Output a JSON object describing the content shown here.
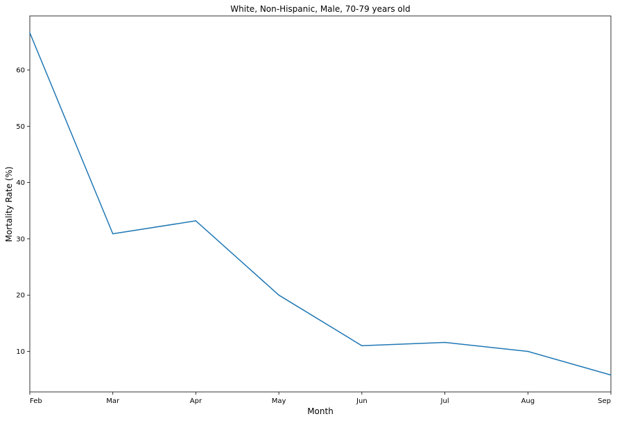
{
  "chart_data": {
    "type": "line",
    "title": "White, Non-Hispanic, Male, 70-79 years old",
    "xlabel": "Month",
    "ylabel": "Mortality Rate (%)",
    "categories": [
      "Feb",
      "Mar",
      "Apr",
      "May",
      "Jun",
      "Jul",
      "Aug",
      "Sep"
    ],
    "series": [
      {
        "values": [
          66.6,
          30.9,
          33.2,
          20.0,
          11.0,
          11.6,
          10.0,
          5.8
        ],
        "color": "#1f77b4"
      }
    ],
    "ylim": [
      2.8,
      69.6
    ],
    "yticks": [
      10,
      20,
      30,
      40,
      50,
      60
    ],
    "grid": false
  }
}
